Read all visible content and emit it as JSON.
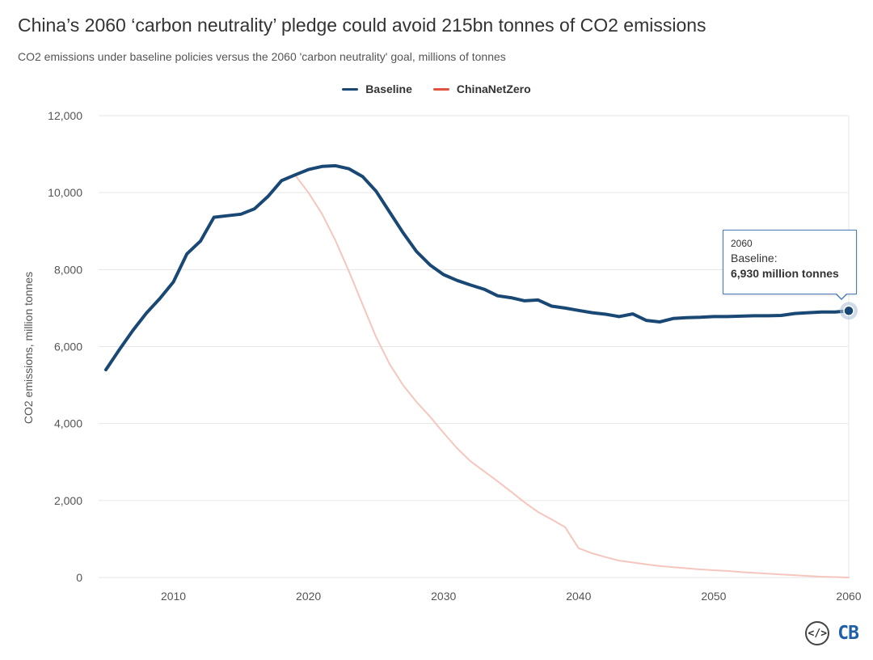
{
  "header": {
    "title": "China’s 2060 ‘carbon neutrality’ pledge could avoid 215bn tonnes of CO2 emissions",
    "subtitle": "CO2 emissions under baseline policies versus the 2060 'carbon neutrality' goal, millions of tonnes"
  },
  "legend": {
    "baseline_label": "Baseline",
    "netzero_label": "ChinaNetZero"
  },
  "colors": {
    "baseline": "#1a4874",
    "netzero": "#f5c6bd",
    "netzero_legend": "#e0533f",
    "grid": "#e6e6e6"
  },
  "tooltip": {
    "year": "2060",
    "series": "Baseline:",
    "value": "6,930 million tonnes"
  },
  "logo": {
    "icon_text": "</>",
    "brand": "CB"
  },
  "chart_data": {
    "type": "line",
    "title": "China’s 2060 ‘carbon neutrality’ pledge could avoid 215bn tonnes of CO2 emissions",
    "xlabel": "",
    "ylabel": "CO2 emissions, million tonnes",
    "xlim": [
      2005,
      2060
    ],
    "ylim": [
      0,
      12000
    ],
    "x_ticks": [
      2010,
      2020,
      2030,
      2040,
      2050,
      2060
    ],
    "x_tick_labels": [
      "2010",
      "2020",
      "2030",
      "2040",
      "2050",
      "2060"
    ],
    "y_ticks": [
      0,
      2000,
      4000,
      6000,
      8000,
      10000,
      12000
    ],
    "y_tick_labels": [
      "0",
      "2,000",
      "4,000",
      "6,000",
      "8,000",
      "10,000",
      "12,000"
    ],
    "legend_position": "top-center",
    "highlight": {
      "series": "Baseline",
      "x": 2060,
      "y": 6930
    },
    "series": [
      {
        "name": "Baseline",
        "x": [
          2005,
          2006,
          2007,
          2008,
          2009,
          2010,
          2011,
          2012,
          2013,
          2014,
          2015,
          2016,
          2017,
          2018,
          2019,
          2020,
          2021,
          2022,
          2023,
          2024,
          2025,
          2026,
          2027,
          2028,
          2029,
          2030,
          2031,
          2032,
          2033,
          2034,
          2035,
          2036,
          2037,
          2038,
          2039,
          2040,
          2041,
          2042,
          2043,
          2044,
          2045,
          2046,
          2047,
          2048,
          2049,
          2050,
          2051,
          2052,
          2053,
          2054,
          2055,
          2056,
          2057,
          2058,
          2059,
          2060
        ],
        "values": [
          5400,
          5920,
          6420,
          6870,
          7250,
          7680,
          8410,
          8740,
          9360,
          9400,
          9440,
          9580,
          9900,
          10310,
          10460,
          10600,
          10680,
          10700,
          10620,
          10420,
          10040,
          9500,
          8960,
          8470,
          8120,
          7870,
          7720,
          7600,
          7490,
          7320,
          7270,
          7190,
          7210,
          7050,
          7000,
          6940,
          6880,
          6840,
          6780,
          6850,
          6680,
          6640,
          6730,
          6750,
          6760,
          6780,
          6780,
          6790,
          6800,
          6800,
          6810,
          6860,
          6880,
          6900,
          6900,
          6930
        ]
      },
      {
        "name": "ChinaNetZero",
        "x": [
          2019,
          2020,
          2021,
          2022,
          2023,
          2024,
          2025,
          2026,
          2027,
          2028,
          2029,
          2030,
          2031,
          2032,
          2033,
          2034,
          2035,
          2036,
          2037,
          2038,
          2039,
          2040,
          2041,
          2042,
          2043,
          2044,
          2045,
          2046,
          2047,
          2048,
          2049,
          2050,
          2051,
          2052,
          2053,
          2054,
          2055,
          2056,
          2057,
          2058,
          2059,
          2060
        ],
        "values": [
          10460,
          10000,
          9450,
          8750,
          7950,
          7100,
          6250,
          5550,
          5000,
          4560,
          4180,
          3760,
          3360,
          3020,
          2760,
          2500,
          2230,
          1950,
          1700,
          1510,
          1310,
          760,
          630,
          530,
          440,
          390,
          340,
          300,
          270,
          240,
          210,
          190,
          170,
          140,
          120,
          100,
          80,
          60,
          40,
          20,
          10,
          0
        ]
      }
    ]
  }
}
